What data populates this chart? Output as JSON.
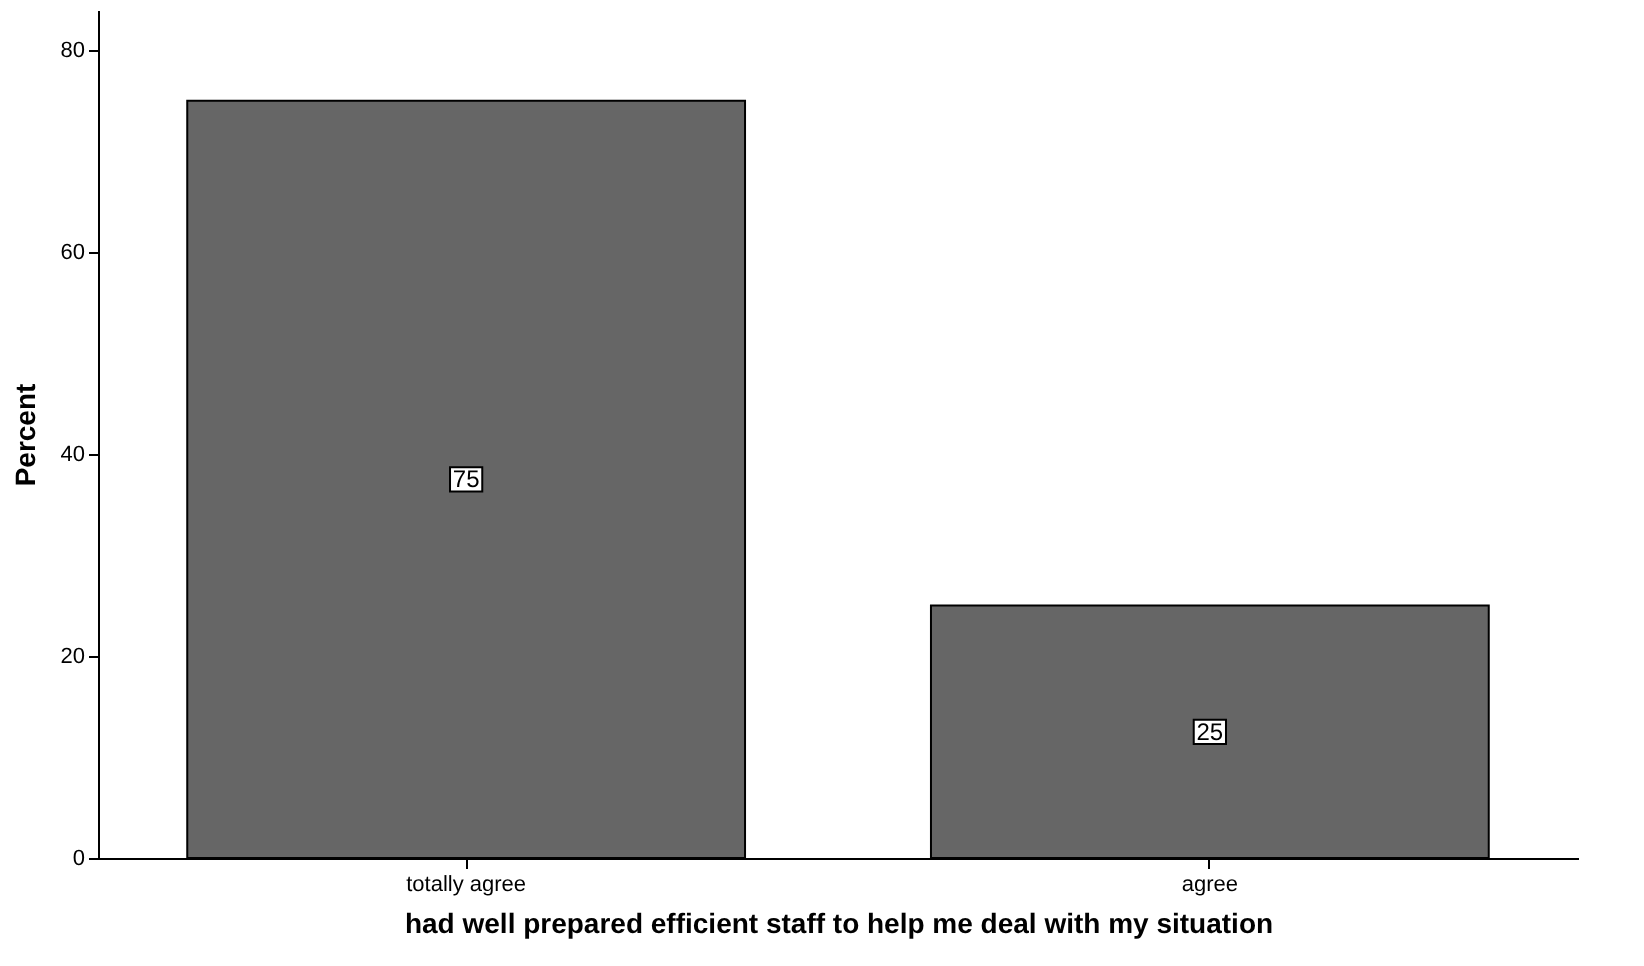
{
  "chart_data": {
    "type": "bar",
    "xlabel": "had well prepared efficient staff to help me deal with my situation",
    "ylabel": "Percent",
    "categories": [
      "totally agree",
      "agree"
    ],
    "values": [
      75,
      25
    ],
    "color": "#666666",
    "ylim": [
      0,
      84
    ],
    "yticks": [
      0,
      20,
      40,
      60,
      80
    ],
    "grid": false,
    "data_labels": true
  }
}
